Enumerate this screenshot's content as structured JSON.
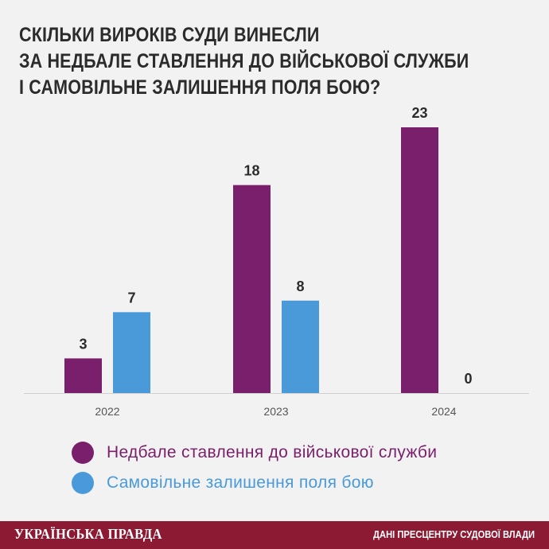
{
  "title": {
    "line1": "СКІЛЬКИ ВИРОКІВ СУДИ ВИНЕСЛИ",
    "line2": "ЗА НЕДБАЛЕ СТАВЛЕННЯ ДО ВІЙСЬКОВОЇ СЛУЖБИ",
    "line3": "І САМОВІЛЬНЕ ЗАЛИШЕННЯ ПОЛЯ БОЮ?"
  },
  "chart_data": {
    "type": "bar",
    "categories": [
      "2022",
      "2023",
      "2024"
    ],
    "series": [
      {
        "name": "Недбале ставлення до військової служби",
        "values": [
          3,
          18,
          23
        ],
        "color": "#7a1f6b"
      },
      {
        "name": "Самовільне залишення поля бою",
        "values": [
          7,
          8,
          0
        ],
        "color": "#4a9ad9"
      }
    ],
    "ylim": [
      0,
      23
    ],
    "grid": false,
    "legend": "bottom-left"
  },
  "footer": {
    "brand": "УКРАЇНСЬКА ПРАВДА",
    "source": "ДАНІ ПРЕСЦЕНТРУ СУДОВОЇ ВЛАДИ"
  }
}
